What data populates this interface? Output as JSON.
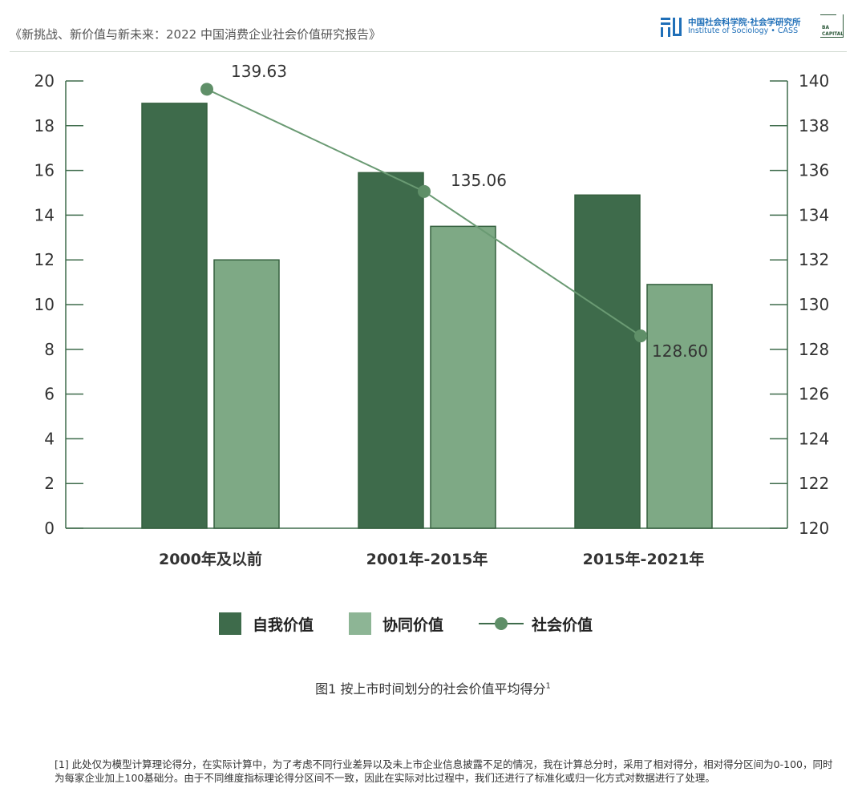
{
  "header": {
    "title": "《新挑战、新价值与新未来：2022 中国消费企业社会价值研究报告》",
    "logo_cass_cn": "中国社会科学院·社会学研究所",
    "logo_cass_en": "Institute of Sociology • CASS",
    "logo_ba": "BA\nCAPITAL"
  },
  "chart_data": {
    "type": "bar",
    "categories": [
      "2000年及以前",
      "2001年-2015年",
      "2015年-2021年"
    ],
    "series": [
      {
        "name": "自我价值",
        "type": "bar",
        "axis": "left",
        "color": "#3e6b4b",
        "values": [
          19,
          15.9,
          14.9
        ]
      },
      {
        "name": "协同价值",
        "type": "bar",
        "axis": "left",
        "color": "#7ea985",
        "values": [
          12,
          13.5,
          10.9
        ]
      },
      {
        "name": "社会价值",
        "type": "line",
        "axis": "right",
        "color": "#6a9a73",
        "values": [
          139.63,
          135.06,
          128.6
        ],
        "labels": [
          "139.63",
          "135.06",
          "128.60"
        ]
      }
    ],
    "y_left": {
      "min": 0,
      "max": 20,
      "ticks": [
        0,
        2,
        4,
        6,
        8,
        10,
        12,
        14,
        16,
        18,
        20
      ]
    },
    "y_right": {
      "min": 120,
      "max": 140,
      "ticks": [
        120,
        122,
        124,
        126,
        128,
        130,
        132,
        134,
        136,
        138,
        140
      ]
    },
    "grid": false,
    "legend_position": "bottom",
    "caption": "图1 按上市时间划分的社会价值平均得分",
    "caption_sup": "1"
  },
  "footnote": "[1] 此处仅为模型计算理论得分，在实际计算中，为了考虑不同行业差异以及未上市企业信息披露不足的情况，我在计算总分时，采用了相对得分，相对得分区间为0-100，同时为每家企业加上100基础分。由于不同维度指标理论得分区间不一致，因此在实际对比过程中，我们还进行了标准化或归一化方式对数据进行了处理。"
}
